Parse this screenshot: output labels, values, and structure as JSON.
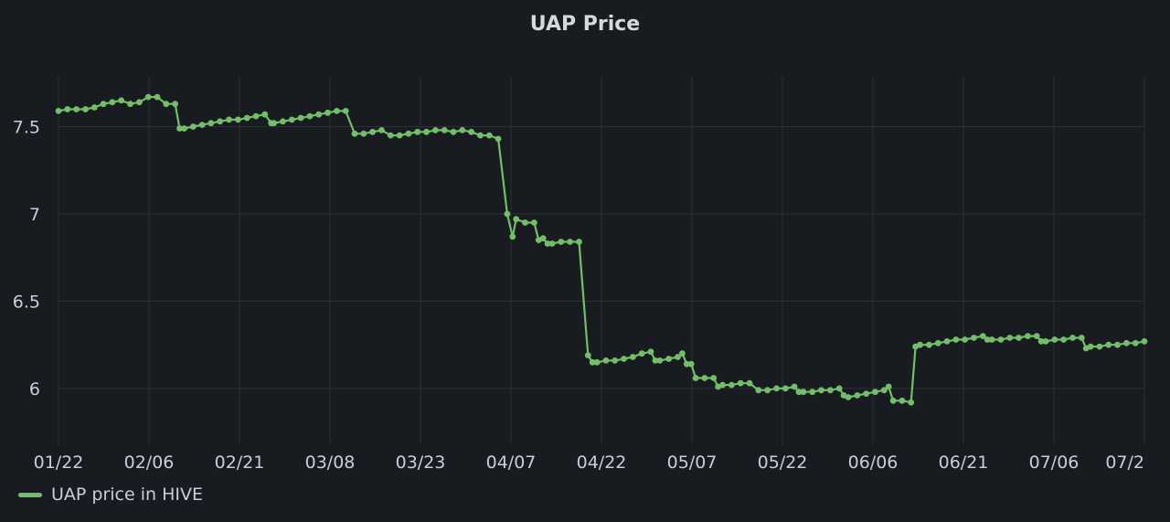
{
  "panel": {
    "title": "UAP Price"
  },
  "chart_data": {
    "type": "line",
    "title": "UAP Price",
    "xlabel": "",
    "ylabel": "",
    "x_ticks": [
      "01/22",
      "02/06",
      "02/21",
      "03/08",
      "03/23",
      "04/07",
      "04/22",
      "05/07",
      "05/22",
      "06/06",
      "06/21",
      "07/06",
      "07/2"
    ],
    "y_ticks": [
      "6",
      "6.5",
      "7",
      "7.5"
    ],
    "ylim": [
      5.68,
      7.88
    ],
    "grid": true,
    "legend_position": "bottom-left",
    "series": [
      {
        "name": "UAP price in HIVE",
        "color": "#73bf69",
        "points": [
          [
            0,
            7.59
          ],
          [
            1,
            7.6
          ],
          [
            2,
            7.6
          ],
          [
            3,
            7.6
          ],
          [
            4,
            7.61
          ],
          [
            5,
            7.63
          ],
          [
            6,
            7.64
          ],
          [
            7,
            7.65
          ],
          [
            8,
            7.63
          ],
          [
            9,
            7.64
          ],
          [
            10,
            7.67
          ],
          [
            11,
            7.67
          ],
          [
            12,
            7.63
          ],
          [
            13,
            7.63
          ],
          [
            13.5,
            7.49
          ],
          [
            14,
            7.49
          ],
          [
            15,
            7.5
          ],
          [
            16,
            7.51
          ],
          [
            17,
            7.52
          ],
          [
            18,
            7.53
          ],
          [
            19,
            7.54
          ],
          [
            20,
            7.54
          ],
          [
            21,
            7.55
          ],
          [
            22,
            7.56
          ],
          [
            23,
            7.57
          ],
          [
            23.7,
            7.52
          ],
          [
            24,
            7.52
          ],
          [
            25,
            7.53
          ],
          [
            26,
            7.54
          ],
          [
            27,
            7.55
          ],
          [
            28,
            7.56
          ],
          [
            29,
            7.57
          ],
          [
            30,
            7.58
          ],
          [
            31,
            7.59
          ],
          [
            32,
            7.59
          ],
          [
            33,
            7.46
          ],
          [
            34,
            7.46
          ],
          [
            35,
            7.47
          ],
          [
            36,
            7.48
          ],
          [
            37,
            7.45
          ],
          [
            38,
            7.45
          ],
          [
            39,
            7.46
          ],
          [
            40,
            7.47
          ],
          [
            41,
            7.47
          ],
          [
            42,
            7.48
          ],
          [
            43,
            7.48
          ],
          [
            44,
            7.47
          ],
          [
            45,
            7.48
          ],
          [
            46,
            7.47
          ],
          [
            47,
            7.45
          ],
          [
            48,
            7.45
          ],
          [
            49,
            7.43
          ],
          [
            50,
            7.0
          ],
          [
            50.6,
            6.87
          ],
          [
            51,
            6.97
          ],
          [
            52,
            6.95
          ],
          [
            53,
            6.95
          ],
          [
            53.5,
            6.85
          ],
          [
            54,
            6.86
          ],
          [
            54.5,
            6.83
          ],
          [
            55,
            6.83
          ],
          [
            56,
            6.84
          ],
          [
            57,
            6.84
          ],
          [
            58,
            6.84
          ],
          [
            59,
            6.19
          ],
          [
            59.5,
            6.15
          ],
          [
            60,
            6.15
          ],
          [
            61,
            6.16
          ],
          [
            62,
            6.16
          ],
          [
            63,
            6.17
          ],
          [
            64,
            6.18
          ],
          [
            65,
            6.2
          ],
          [
            66,
            6.21
          ],
          [
            66.5,
            6.16
          ],
          [
            67,
            6.16
          ],
          [
            68,
            6.17
          ],
          [
            69,
            6.18
          ],
          [
            69.5,
            6.2
          ],
          [
            70,
            6.14
          ],
          [
            70.5,
            6.14
          ],
          [
            71,
            6.06
          ],
          [
            72,
            6.06
          ],
          [
            73,
            6.06
          ],
          [
            73.5,
            6.01
          ],
          [
            74,
            6.02
          ],
          [
            75,
            6.02
          ],
          [
            76,
            6.03
          ],
          [
            77,
            6.03
          ],
          [
            78,
            5.99
          ],
          [
            79,
            5.99
          ],
          [
            80,
            6.0
          ],
          [
            81,
            6.0
          ],
          [
            82,
            6.01
          ],
          [
            82.5,
            5.98
          ],
          [
            83,
            5.98
          ],
          [
            84,
            5.98
          ],
          [
            85,
            5.99
          ],
          [
            86,
            5.99
          ],
          [
            87,
            6.0
          ],
          [
            87.5,
            5.96
          ],
          [
            88,
            5.95
          ],
          [
            89,
            5.96
          ],
          [
            90,
            5.97
          ],
          [
            91,
            5.98
          ],
          [
            92,
            5.99
          ],
          [
            92.5,
            6.01
          ],
          [
            93,
            5.93
          ],
          [
            94,
            5.93
          ],
          [
            95,
            5.92
          ],
          [
            95.5,
            6.24
          ],
          [
            96,
            6.25
          ],
          [
            97,
            6.25
          ],
          [
            98,
            6.26
          ],
          [
            99,
            6.27
          ],
          [
            100,
            6.28
          ],
          [
            101,
            6.28
          ],
          [
            102,
            6.29
          ],
          [
            103,
            6.3
          ],
          [
            103.5,
            6.28
          ],
          [
            104,
            6.28
          ],
          [
            105,
            6.28
          ],
          [
            106,
            6.29
          ],
          [
            107,
            6.29
          ],
          [
            108,
            6.3
          ],
          [
            109,
            6.3
          ],
          [
            109.5,
            6.27
          ],
          [
            110,
            6.27
          ],
          [
            111,
            6.28
          ],
          [
            112,
            6.28
          ],
          [
            113,
            6.29
          ],
          [
            114,
            6.29
          ],
          [
            114.5,
            6.23
          ],
          [
            115,
            6.24
          ],
          [
            116,
            6.24
          ],
          [
            117,
            6.25
          ],
          [
            118,
            6.25
          ],
          [
            119,
            6.26
          ],
          [
            120,
            6.26
          ],
          [
            121,
            6.27
          ]
        ]
      }
    ]
  },
  "legend": {
    "label": "UAP price in HIVE"
  }
}
